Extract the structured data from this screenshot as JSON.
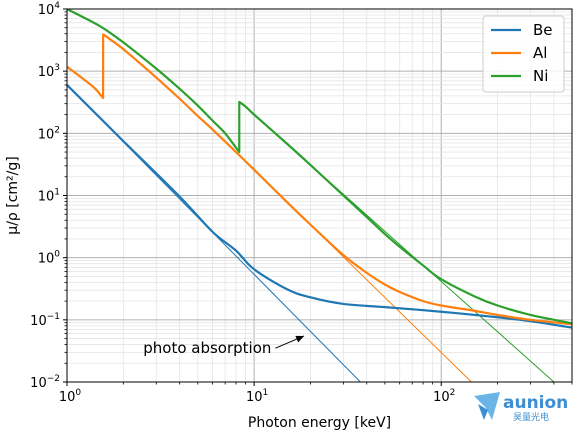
{
  "chart_data": {
    "type": "line",
    "title": "",
    "xlabel": "Photon energy [keV]",
    "ylabel": "μ/ρ [cm²/g]",
    "xscale": "log",
    "yscale": "log",
    "xlim": [
      1,
      500
    ],
    "ylim": [
      0.01,
      10000
    ],
    "grid": "major and minor",
    "legend_position": "top-right",
    "x_ticks": [
      {
        "value": 1,
        "base": "10",
        "exp": "0"
      },
      {
        "value": 10,
        "base": "10",
        "exp": "1"
      },
      {
        "value": 100,
        "base": "10",
        "exp": "2"
      }
    ],
    "y_ticks": [
      {
        "value": 0.01,
        "base": "10",
        "exp": "−2"
      },
      {
        "value": 0.1,
        "base": "10",
        "exp": "−1"
      },
      {
        "value": 1,
        "base": "10",
        "exp": "0"
      },
      {
        "value": 10,
        "base": "10",
        "exp": "1"
      },
      {
        "value": 100,
        "base": "10",
        "exp": "2"
      },
      {
        "value": 1000,
        "base": "10",
        "exp": "3"
      },
      {
        "value": 10000,
        "base": "10",
        "exp": "4"
      }
    ],
    "series": [
      {
        "name": "Be",
        "color": "#1f77b4",
        "points": [
          [
            1,
            600
          ],
          [
            2,
            75
          ],
          [
            4,
            9.6
          ],
          [
            6,
            2.6
          ],
          [
            8,
            1.3
          ],
          [
            10,
            0.65
          ],
          [
            15,
            0.31
          ],
          [
            20,
            0.23
          ],
          [
            30,
            0.18
          ],
          [
            50,
            0.16
          ],
          [
            100,
            0.135
          ],
          [
            200,
            0.11
          ],
          [
            300,
            0.095
          ],
          [
            500,
            0.075
          ]
        ]
      },
      {
        "name": "Al",
        "color": "#ff7f0e",
        "points": [
          [
            1,
            1180
          ],
          [
            1.2,
            780
          ],
          [
            1.4,
            540
          ],
          [
            1.559,
            370
          ],
          [
            1.5601,
            3900
          ],
          [
            2,
            2260
          ],
          [
            3,
            790
          ],
          [
            4,
            360
          ],
          [
            5,
            190
          ],
          [
            6,
            115
          ],
          [
            8,
            50
          ],
          [
            10,
            26
          ],
          [
            15,
            7.8
          ],
          [
            20,
            3.4
          ],
          [
            30,
            1.1
          ],
          [
            40,
            0.57
          ],
          [
            50,
            0.37
          ],
          [
            60,
            0.28
          ],
          [
            80,
            0.2
          ],
          [
            100,
            0.17
          ],
          [
            150,
            0.14
          ],
          [
            200,
            0.12
          ],
          [
            300,
            0.1
          ],
          [
            500,
            0.085
          ]
        ]
      },
      {
        "name": "Ni",
        "color": "#2ca02c",
        "points": [
          [
            1,
            10000
          ],
          [
            1.5,
            5300
          ],
          [
            2,
            2900
          ],
          [
            3,
            1100
          ],
          [
            4,
            520
          ],
          [
            5,
            280
          ],
          [
            6,
            160
          ],
          [
            7,
            100
          ],
          [
            8.33,
            50
          ],
          [
            8.3301,
            320
          ],
          [
            9,
            270
          ],
          [
            10,
            200
          ],
          [
            15,
            68
          ],
          [
            20,
            31
          ],
          [
            30,
            10
          ],
          [
            40,
            4.5
          ],
          [
            50,
            2.4
          ],
          [
            60,
            1.5
          ],
          [
            80,
            0.75
          ],
          [
            100,
            0.45
          ],
          [
            150,
            0.24
          ],
          [
            200,
            0.17
          ],
          [
            300,
            0.12
          ],
          [
            500,
            0.088
          ]
        ]
      }
    ],
    "reference_lines": [
      {
        "series": "Be",
        "color": "#1f77b4",
        "points": [
          [
            1,
            600
          ],
          [
            37,
            0.01
          ]
        ]
      },
      {
        "series": "Al",
        "color": "#ff7f0e",
        "points": [
          [
            10,
            26
          ],
          [
            145,
            0.01
          ]
        ]
      },
      {
        "series": "Ni",
        "color": "#2ca02c",
        "points": [
          [
            10,
            200
          ],
          [
            400,
            0.01
          ]
        ]
      }
    ],
    "annotation": {
      "text": "photo absorption",
      "arrow_from": [
        13,
        0.035
      ],
      "arrow_to": [
        18.5,
        0.055
      ]
    }
  },
  "watermark": {
    "text": "aunion",
    "subtext": "昊量光电"
  }
}
